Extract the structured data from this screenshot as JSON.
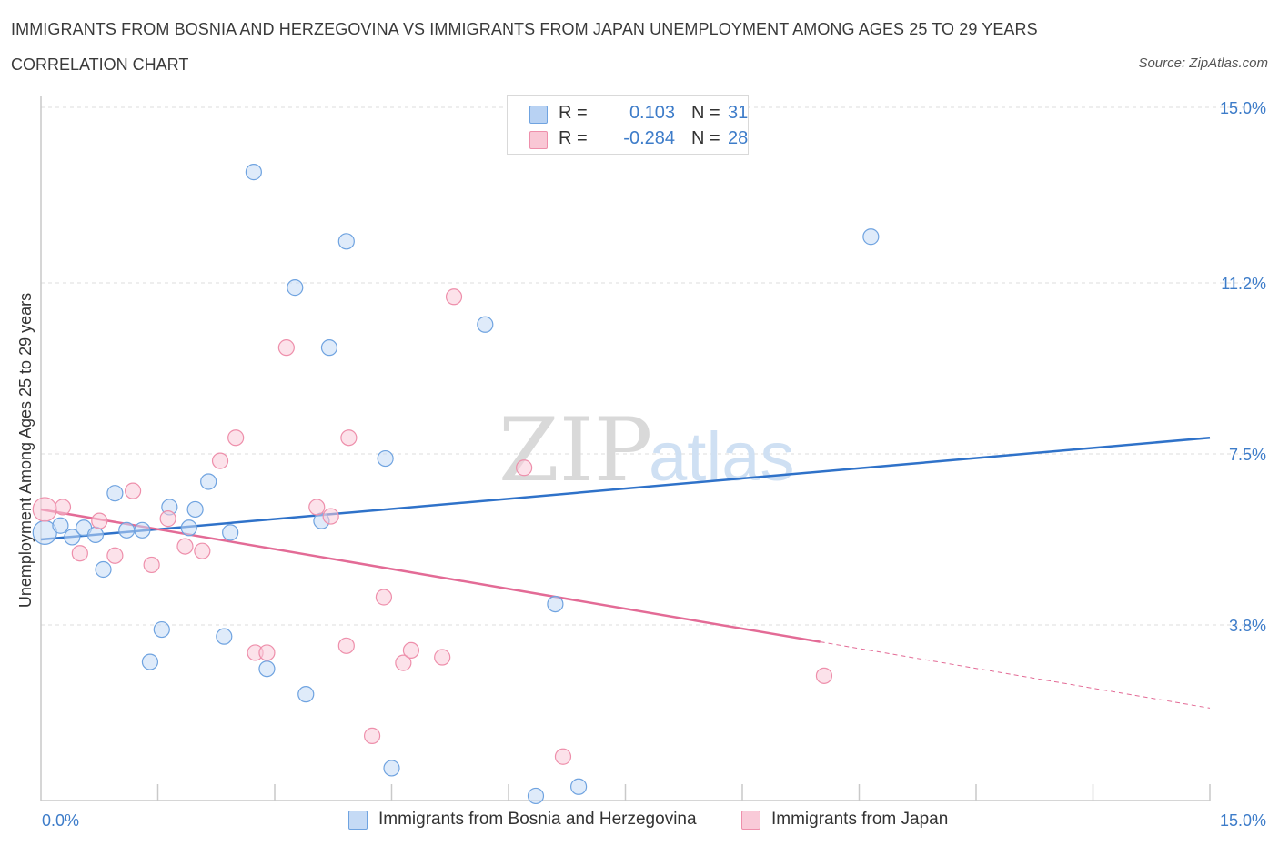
{
  "header": {
    "title": "IMMIGRANTS FROM BOSNIA AND HERZEGOVINA VS IMMIGRANTS FROM JAPAN UNEMPLOYMENT AMONG AGES 25 TO 29 YEARS",
    "subtitle": "CORRELATION CHART",
    "source": "Source: ZipAtlas.com"
  },
  "watermark": {
    "zip": "ZIP",
    "atlas": "atlas"
  },
  "stats_legend": {
    "r_label": "R =",
    "n_label": "N =",
    "rows": [
      {
        "r": "0.103",
        "n": "31",
        "color": "#b8d2f3"
      },
      {
        "r": "-0.284",
        "n": "28",
        "color": "#f9c7d5"
      }
    ]
  },
  "chart_data": {
    "type": "scatter",
    "ylabel": "Unemployment Among Ages 25 to 29 years",
    "xlim": [
      0,
      15
    ],
    "ylim": [
      0,
      15
    ],
    "x_tick_labels": [
      "0.0%",
      "15.0%"
    ],
    "y_tick_labels": [
      {
        "value": 15.0,
        "label": "15.0%"
      },
      {
        "value": 11.2,
        "label": "11.2%"
      },
      {
        "value": 7.5,
        "label": "7.5%"
      },
      {
        "value": 3.8,
        "label": "3.8%"
      }
    ],
    "grid": true,
    "series": [
      {
        "name": "Immigrants from Bosnia and Herzegovina",
        "color": "#6fa3e0",
        "fill": "#c5daf5",
        "line_color": "#2f72c9",
        "trend": {
          "x0": 0,
          "y0": 5.65,
          "x1": 15,
          "y1": 7.85,
          "dashed_from": null
        },
        "points": [
          [
            0.05,
            5.8
          ],
          [
            0.25,
            5.95
          ],
          [
            0.4,
            5.7
          ],
          [
            0.55,
            5.9
          ],
          [
            0.7,
            5.75
          ],
          [
            0.8,
            5.0
          ],
          [
            0.95,
            6.65
          ],
          [
            1.1,
            5.85
          ],
          [
            1.3,
            5.85
          ],
          [
            1.4,
            3.0
          ],
          [
            1.55,
            3.7
          ],
          [
            1.65,
            6.35
          ],
          [
            1.9,
            5.9
          ],
          [
            1.98,
            6.3
          ],
          [
            2.15,
            6.9
          ],
          [
            2.35,
            3.55
          ],
          [
            2.43,
            5.8
          ],
          [
            2.73,
            13.6
          ],
          [
            2.9,
            2.85
          ],
          [
            3.26,
            11.1
          ],
          [
            3.4,
            2.3
          ],
          [
            3.6,
            6.05
          ],
          [
            3.7,
            9.8
          ],
          [
            3.92,
            12.1
          ],
          [
            4.42,
            7.4
          ],
          [
            4.5,
            0.7
          ],
          [
            5.7,
            10.3
          ],
          [
            6.6,
            4.25
          ],
          [
            6.35,
            0.1
          ],
          [
            6.9,
            0.3
          ],
          [
            10.65,
            12.2
          ]
        ]
      },
      {
        "name": "Immigrants from Japan",
        "color": "#ee8fab",
        "fill": "#f9cad8",
        "line_color": "#e36b96",
        "trend": {
          "x0": 0,
          "y0": 6.3,
          "x1": 15,
          "y1": 2.0,
          "dashed_from": 10.0
        },
        "points": [
          [
            0.05,
            6.3
          ],
          [
            0.28,
            6.35
          ],
          [
            0.5,
            5.35
          ],
          [
            0.75,
            6.05
          ],
          [
            0.95,
            5.3
          ],
          [
            1.18,
            6.7
          ],
          [
            1.42,
            5.1
          ],
          [
            1.63,
            6.1
          ],
          [
            1.85,
            5.5
          ],
          [
            2.07,
            5.4
          ],
          [
            2.3,
            7.35
          ],
          [
            2.5,
            7.85
          ],
          [
            2.75,
            3.2
          ],
          [
            2.9,
            3.2
          ],
          [
            3.15,
            9.8
          ],
          [
            3.54,
            6.35
          ],
          [
            3.72,
            6.15
          ],
          [
            3.92,
            3.35
          ],
          [
            3.95,
            7.85
          ],
          [
            4.25,
            1.4
          ],
          [
            4.4,
            4.4
          ],
          [
            4.65,
            2.98
          ],
          [
            4.75,
            3.25
          ],
          [
            5.15,
            3.1
          ],
          [
            5.3,
            10.9
          ],
          [
            6.2,
            7.2
          ],
          [
            6.7,
            0.95
          ],
          [
            10.05,
            2.7
          ]
        ]
      }
    ]
  }
}
